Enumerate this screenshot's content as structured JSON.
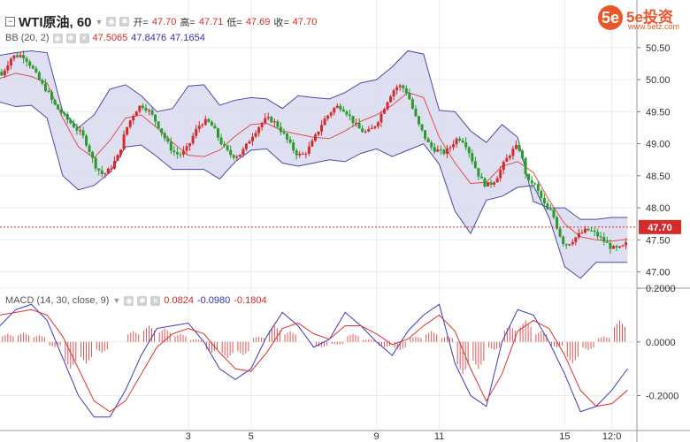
{
  "header": {
    "symbol": "WTI原油, 60",
    "open_label": "开=",
    "open": "47.70",
    "high_label": "高=",
    "high": "47.71",
    "low_label": "低=",
    "low": "47.69",
    "close_label": "收=",
    "close": "47.70"
  },
  "bb": {
    "name": "BB (20, 2)",
    "v1": "47.5065",
    "v2": "47.8476",
    "v3": "47.1654"
  },
  "macd": {
    "name": "MACD (14, 30, close, 9)",
    "v1": "0.0824",
    "v2": "-0.0980",
    "v3": "-0.1804"
  },
  "logo": {
    "mark": "5e",
    "text": "5e投资",
    "url": "www.5etz.com"
  },
  "colors": {
    "up": "#d52b2b",
    "down": "#2a9a2a",
    "bb_band": "#4a4aa8",
    "bb_fill": "#d8dbf0",
    "basis": "#e05050",
    "macd_line": "#3a3abf",
    "signal_line": "#e03030",
    "axis_text": "#333333",
    "current_price_bg": "#d52b2b"
  },
  "chart_data": [
    {
      "type": "line",
      "title": "WTI原油, 60",
      "x_ticks": [
        "3",
        "5",
        "9",
        "11",
        "15",
        "12:0"
      ],
      "x_tick_positions": [
        6.0,
        8.0,
        12.0,
        14.0,
        18.0,
        19.5
      ],
      "xlim": [
        0,
        20.3
      ],
      "ylim": [
        46.76,
        50.76
      ],
      "y_ticks": [
        "50.50",
        "50.00",
        "49.50",
        "49.00",
        "48.50",
        "48.00",
        "47.50",
        "47.00"
      ],
      "current_price": "47.70",
      "series": [
        {
          "name": "BB upper",
          "x": [
            0,
            0.5,
            1.0,
            1.5,
            2.0,
            2.5,
            3.0,
            3.5,
            4.0,
            4.5,
            5.0,
            5.5,
            6.0,
            6.5,
            7.0,
            7.5,
            8.0,
            8.5,
            9.0,
            9.5,
            10.0,
            10.5,
            11.0,
            11.5,
            12.0,
            12.5,
            13.0,
            13.5,
            14.0,
            14.5,
            15.0,
            15.5,
            16.0,
            16.5,
            17.0,
            17.5,
            18.0,
            18.5,
            19.0,
            19.5,
            20.0
          ],
          "values": [
            50.38,
            50.42,
            50.45,
            50.42,
            49.5,
            49.25,
            49.45,
            49.85,
            49.92,
            49.75,
            49.5,
            49.55,
            49.9,
            49.92,
            49.6,
            49.68,
            49.72,
            49.7,
            49.55,
            49.75,
            49.72,
            49.7,
            49.8,
            49.95,
            50.0,
            50.2,
            50.45,
            50.4,
            49.52,
            49.5,
            49.2,
            49.02,
            49.3,
            49.1,
            48.1,
            48.0,
            48.0,
            47.82,
            47.82,
            47.85,
            47.85
          ]
        },
        {
          "name": "BB lower",
          "x": [
            0,
            0.5,
            1.0,
            1.5,
            2.0,
            2.5,
            3.0,
            3.5,
            4.0,
            4.5,
            5.0,
            5.5,
            6.0,
            6.5,
            7.0,
            7.5,
            8.0,
            8.5,
            9.0,
            9.5,
            10.0,
            10.5,
            11.0,
            11.5,
            12.0,
            12.5,
            13.0,
            13.5,
            14.0,
            14.5,
            15.0,
            15.5,
            16.0,
            16.5,
            17.0,
            17.5,
            18.0,
            18.5,
            19.0,
            19.5,
            20.0
          ],
          "values": [
            49.65,
            49.58,
            49.6,
            49.4,
            48.5,
            48.28,
            48.35,
            48.55,
            48.95,
            48.98,
            48.8,
            48.6,
            48.6,
            48.6,
            48.45,
            48.72,
            48.9,
            48.92,
            48.7,
            48.65,
            48.7,
            48.75,
            48.72,
            48.85,
            48.92,
            48.8,
            48.9,
            49.0,
            48.68,
            47.95,
            47.6,
            48.12,
            48.18,
            48.32,
            48.35,
            47.85,
            47.08,
            46.9,
            47.15,
            47.15,
            47.15
          ]
        },
        {
          "name": "BB basis",
          "x": [
            0,
            0.5,
            1.0,
            1.5,
            2.0,
            2.5,
            3.0,
            3.5,
            4.0,
            4.5,
            5.0,
            5.5,
            6.0,
            6.5,
            7.0,
            7.5,
            8.0,
            8.5,
            9.0,
            9.5,
            10.0,
            10.5,
            11.0,
            11.5,
            12.0,
            12.5,
            13.0,
            13.5,
            14.0,
            14.5,
            15.0,
            15.5,
            16.0,
            16.5,
            17.0,
            17.5,
            18.0,
            18.5,
            19.0,
            19.5,
            20.0
          ],
          "values": [
            50.02,
            50.1,
            50.05,
            49.95,
            49.4,
            48.95,
            48.78,
            49.05,
            49.4,
            49.45,
            49.25,
            49.02,
            48.82,
            48.8,
            48.9,
            49.12,
            49.3,
            49.32,
            49.2,
            49.15,
            49.1,
            49.08,
            49.2,
            49.35,
            49.45,
            49.6,
            49.8,
            49.72,
            49.1,
            48.7,
            48.38,
            48.4,
            48.65,
            48.72,
            48.55,
            48.12,
            47.75,
            47.55,
            47.5,
            47.48,
            47.51
          ]
        },
        {
          "name": "MACD line",
          "x": [
            0,
            0.5,
            1.0,
            1.5,
            2.0,
            2.5,
            3.0,
            3.5,
            4.0,
            4.5,
            5.0,
            5.5,
            6.0,
            6.5,
            7.0,
            7.5,
            8.0,
            8.5,
            9.0,
            9.5,
            10.0,
            10.5,
            11.0,
            11.5,
            12.0,
            12.5,
            13.0,
            13.5,
            14.0,
            14.5,
            15.0,
            15.5,
            16.0,
            16.5,
            17.0,
            17.5,
            18.0,
            18.5,
            19.0,
            19.5,
            20.0
          ],
          "values": [
            0.06,
            0.12,
            0.14,
            0.08,
            -0.06,
            -0.2,
            -0.28,
            -0.28,
            -0.18,
            -0.05,
            0.05,
            0.06,
            0.07,
            0.0,
            -0.1,
            -0.14,
            -0.1,
            0.02,
            0.11,
            0.06,
            -0.02,
            0.01,
            0.11,
            0.06,
            0.0,
            -0.05,
            0.04,
            0.1,
            0.14,
            -0.08,
            -0.2,
            -0.24,
            0.0,
            0.12,
            0.1,
            0.0,
            -0.12,
            -0.26,
            -0.24,
            -0.18,
            -0.1
          ]
        },
        {
          "name": "Signal line",
          "x": [
            0,
            0.5,
            1.0,
            1.5,
            2.0,
            2.5,
            3.0,
            3.5,
            4.0,
            4.5,
            5.0,
            5.5,
            6.0,
            6.5,
            7.0,
            7.5,
            8.0,
            8.5,
            9.0,
            9.5,
            10.0,
            10.5,
            11.0,
            11.5,
            12.0,
            12.5,
            13.0,
            13.5,
            14.0,
            14.5,
            15.0,
            15.5,
            16.0,
            16.5,
            17.0,
            17.5,
            18.0,
            18.5,
            19.0,
            19.5,
            20.0
          ],
          "values": [
            0.1,
            0.11,
            0.12,
            0.1,
            0.02,
            -0.1,
            -0.22,
            -0.26,
            -0.22,
            -0.12,
            -0.02,
            0.03,
            0.05,
            0.03,
            -0.04,
            -0.1,
            -0.11,
            -0.04,
            0.05,
            0.07,
            0.03,
            0.01,
            0.06,
            0.06,
            0.03,
            -0.01,
            0.01,
            0.06,
            0.1,
            0.04,
            -0.1,
            -0.22,
            -0.12,
            0.04,
            0.08,
            0.05,
            -0.05,
            -0.18,
            -0.24,
            -0.23,
            -0.18
          ]
        }
      ]
    },
    {
      "type": "bar",
      "title": "MACD histogram",
      "y_ticks": [
        "0.2000",
        "0.0000",
        "-0.2000"
      ],
      "ylim": [
        -0.33,
        0.2
      ],
      "x": [
        0.25,
        0.75,
        1.25,
        1.75,
        2.25,
        2.75,
        3.25,
        3.75,
        4.25,
        4.75,
        5.25,
        5.75,
        6.25,
        6.75,
        7.25,
        7.75,
        8.25,
        8.75,
        9.25,
        9.75,
        10.25,
        10.75,
        11.25,
        11.75,
        12.25,
        12.75,
        13.25,
        13.75,
        14.25,
        14.75,
        15.25,
        15.75,
        16.25,
        16.75,
        17.25,
        17.75,
        18.25,
        18.75,
        19.25,
        19.75
      ],
      "values": [
        0.03,
        0.035,
        0.025,
        -0.02,
        -0.1,
        -0.08,
        -0.04,
        0.0,
        0.04,
        0.06,
        0.05,
        0.03,
        0.01,
        -0.04,
        -0.06,
        -0.05,
        0.02,
        0.06,
        0.04,
        0.0,
        -0.02,
        -0.01,
        0.03,
        0.01,
        -0.02,
        -0.03,
        0.02,
        0.04,
        0.02,
        -0.12,
        -0.1,
        -0.03,
        0.06,
        0.08,
        0.04,
        -0.02,
        -0.08,
        -0.03,
        0.02,
        0.08
      ]
    }
  ]
}
